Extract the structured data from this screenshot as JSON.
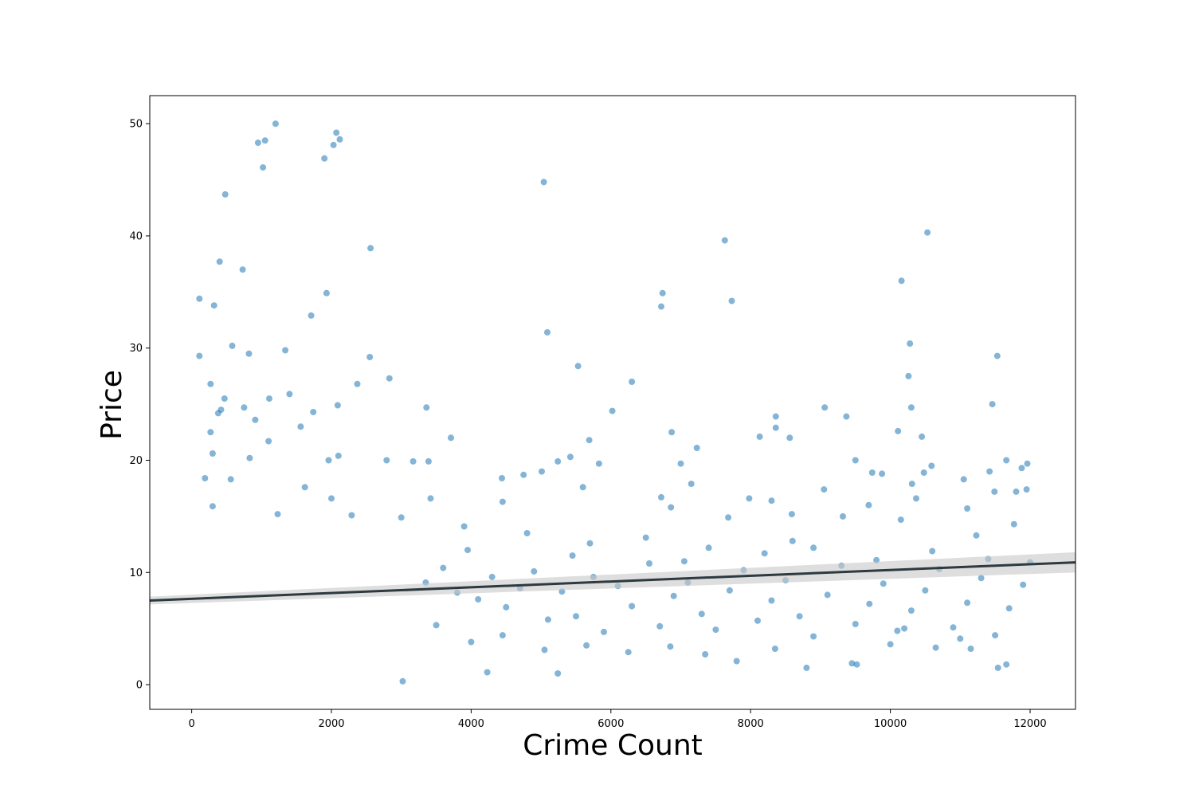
{
  "chart_data": {
    "type": "scatter",
    "title": "",
    "xlabel": "Crime Count",
    "ylabel": "Price",
    "xlim": [
      -600,
      12650
    ],
    "ylim": [
      -2.2,
      52.5
    ],
    "x_ticks": [
      0,
      2000,
      4000,
      6000,
      8000,
      10000,
      12000
    ],
    "y_ticks": [
      0,
      10,
      20,
      30,
      40,
      50
    ],
    "grid": false,
    "legend": "none",
    "colors": {
      "points": "#1f77b4",
      "regression_line": "#2d3a40",
      "confidence_band": "#c8c8c8"
    },
    "regression": {
      "intercept": 7.65,
      "slope": 0.000257,
      "ci_at_xmin": 0.35,
      "ci_at_xmax": 0.9
    },
    "series": [
      {
        "points": [
          [
            1200,
            50.0
          ],
          [
            2070,
            49.2
          ],
          [
            950,
            48.3
          ],
          [
            1050,
            48.5
          ],
          [
            2120,
            48.6
          ],
          [
            1900,
            46.9
          ],
          [
            2030,
            48.1
          ],
          [
            1020,
            46.1
          ],
          [
            480,
            43.7
          ],
          [
            5040,
            44.8
          ],
          [
            400,
            37.7
          ],
          [
            730,
            37.0
          ],
          [
            2560,
            38.9
          ],
          [
            7630,
            39.6
          ],
          [
            10530,
            40.3
          ],
          [
            110,
            34.4
          ],
          [
            320,
            33.8
          ],
          [
            1930,
            34.9
          ],
          [
            6740,
            34.9
          ],
          [
            6720,
            33.7
          ],
          [
            7730,
            34.2
          ],
          [
            10160,
            36.0
          ],
          [
            1710,
            32.9
          ],
          [
            110,
            29.3
          ],
          [
            580,
            30.2
          ],
          [
            820,
            29.5
          ],
          [
            1340,
            29.8
          ],
          [
            2550,
            29.2
          ],
          [
            5090,
            31.4
          ],
          [
            10280,
            30.4
          ],
          [
            11530,
            29.3
          ],
          [
            270,
            26.8
          ],
          [
            5530,
            28.4
          ],
          [
            6300,
            27.0
          ],
          [
            10260,
            27.5
          ],
          [
            2370,
            26.8
          ],
          [
            2830,
            27.3
          ],
          [
            470,
            25.5
          ],
          [
            1110,
            25.5
          ],
          [
            1400,
            25.9
          ],
          [
            10300,
            24.7
          ],
          [
            11460,
            25.0
          ],
          [
            380,
            24.2
          ],
          [
            420,
            24.5
          ],
          [
            750,
            24.7
          ],
          [
            1740,
            24.3
          ],
          [
            2090,
            24.9
          ],
          [
            3360,
            24.7
          ],
          [
            6020,
            24.4
          ],
          [
            8360,
            23.9
          ],
          [
            9060,
            24.7
          ],
          [
            9370,
            23.9
          ],
          [
            270,
            22.5
          ],
          [
            910,
            23.6
          ],
          [
            1560,
            23.0
          ],
          [
            3710,
            22.0
          ],
          [
            5690,
            21.8
          ],
          [
            6870,
            22.5
          ],
          [
            8130,
            22.1
          ],
          [
            8360,
            22.9
          ],
          [
            8560,
            22.0
          ],
          [
            10110,
            22.6
          ],
          [
            10450,
            22.1
          ],
          [
            300,
            20.6
          ],
          [
            830,
            20.2
          ],
          [
            1100,
            21.7
          ],
          [
            1960,
            20.0
          ],
          [
            2100,
            20.4
          ],
          [
            2790,
            20.0
          ],
          [
            3170,
            19.9
          ],
          [
            3390,
            19.9
          ],
          [
            5240,
            19.9
          ],
          [
            5420,
            20.3
          ],
          [
            5830,
            19.7
          ],
          [
            7230,
            21.1
          ],
          [
            7000,
            19.7
          ],
          [
            9500,
            20.0
          ],
          [
            10590,
            19.5
          ],
          [
            11660,
            20.0
          ],
          [
            11960,
            19.7
          ],
          [
            190,
            18.4
          ],
          [
            560,
            18.3
          ],
          [
            4440,
            18.4
          ],
          [
            4750,
            18.7
          ],
          [
            5010,
            19.0
          ],
          [
            9740,
            18.9
          ],
          [
            9880,
            18.8
          ],
          [
            10480,
            18.9
          ],
          [
            11050,
            18.3
          ],
          [
            11420,
            19.0
          ],
          [
            11880,
            19.3
          ],
          [
            1620,
            17.6
          ],
          [
            5600,
            17.6
          ],
          [
            7150,
            17.9
          ],
          [
            9050,
            17.4
          ],
          [
            10310,
            17.9
          ],
          [
            11490,
            17.2
          ],
          [
            11800,
            17.2
          ],
          [
            11950,
            17.4
          ],
          [
            4450,
            16.3
          ],
          [
            6720,
            16.7
          ],
          [
            7980,
            16.6
          ],
          [
            8300,
            16.4
          ],
          [
            9690,
            16.0
          ],
          [
            10370,
            16.6
          ],
          [
            11100,
            15.7
          ],
          [
            2000,
            16.6
          ],
          [
            3420,
            16.6
          ],
          [
            6860,
            15.8
          ],
          [
            7680,
            14.9
          ],
          [
            8590,
            15.2
          ],
          [
            9320,
            15.0
          ],
          [
            10150,
            14.7
          ],
          [
            11230,
            13.3
          ],
          [
            11770,
            14.3
          ],
          [
            300,
            15.9
          ],
          [
            1230,
            15.2
          ],
          [
            2290,
            15.1
          ],
          [
            3000,
            14.9
          ],
          [
            3900,
            14.1
          ],
          [
            4800,
            13.5
          ],
          [
            5700,
            12.6
          ],
          [
            6500,
            13.1
          ],
          [
            7400,
            12.2
          ],
          [
            8200,
            11.7
          ],
          [
            8900,
            12.2
          ],
          [
            9800,
            11.1
          ],
          [
            10600,
            11.9
          ],
          [
            11400,
            11.2
          ],
          [
            12000,
            10.9
          ],
          [
            3350,
            9.1
          ],
          [
            3600,
            10.4
          ],
          [
            3800,
            8.2
          ],
          [
            4100,
            7.6
          ],
          [
            4300,
            9.6
          ],
          [
            4500,
            6.9
          ],
          [
            4700,
            8.6
          ],
          [
            4900,
            10.1
          ],
          [
            5100,
            5.8
          ],
          [
            5300,
            8.3
          ],
          [
            5500,
            6.1
          ],
          [
            5750,
            9.6
          ],
          [
            5900,
            4.7
          ],
          [
            6100,
            8.8
          ],
          [
            6300,
            7.0
          ],
          [
            6550,
            10.8
          ],
          [
            6700,
            5.2
          ],
          [
            6900,
            7.9
          ],
          [
            7100,
            9.1
          ],
          [
            7300,
            6.3
          ],
          [
            7500,
            4.9
          ],
          [
            7700,
            8.4
          ],
          [
            7900,
            10.2
          ],
          [
            8100,
            5.7
          ],
          [
            8300,
            7.5
          ],
          [
            8500,
            9.3
          ],
          [
            8700,
            6.1
          ],
          [
            8900,
            4.3
          ],
          [
            9100,
            8.0
          ],
          [
            9300,
            10.6
          ],
          [
            9500,
            5.4
          ],
          [
            9700,
            7.2
          ],
          [
            9900,
            9.0
          ],
          [
            10100,
            4.8
          ],
          [
            10300,
            6.6
          ],
          [
            10500,
            8.4
          ],
          [
            10700,
            10.3
          ],
          [
            10900,
            5.1
          ],
          [
            11100,
            7.3
          ],
          [
            11300,
            9.5
          ],
          [
            11500,
            4.4
          ],
          [
            11700,
            6.8
          ],
          [
            11900,
            8.9
          ],
          [
            3500,
            5.3
          ],
          [
            4000,
            3.8
          ],
          [
            4450,
            4.4
          ],
          [
            5050,
            3.1
          ],
          [
            5650,
            3.5
          ],
          [
            6250,
            2.9
          ],
          [
            6850,
            3.4
          ],
          [
            7350,
            2.7
          ],
          [
            7800,
            2.1
          ],
          [
            8350,
            3.2
          ],
          [
            8800,
            1.5
          ],
          [
            9450,
            1.9
          ],
          [
            10000,
            3.6
          ],
          [
            10650,
            3.3
          ],
          [
            11150,
            3.2
          ],
          [
            11540,
            1.5
          ],
          [
            11660,
            1.8
          ],
          [
            3020,
            0.3
          ],
          [
            4230,
            1.1
          ],
          [
            5240,
            1.0
          ],
          [
            9520,
            1.8
          ],
          [
            11000,
            4.1
          ],
          [
            10200,
            5.0
          ],
          [
            8600,
            12.8
          ],
          [
            7050,
            11.0
          ],
          [
            5450,
            11.5
          ],
          [
            3950,
            12.0
          ]
        ]
      }
    ]
  }
}
